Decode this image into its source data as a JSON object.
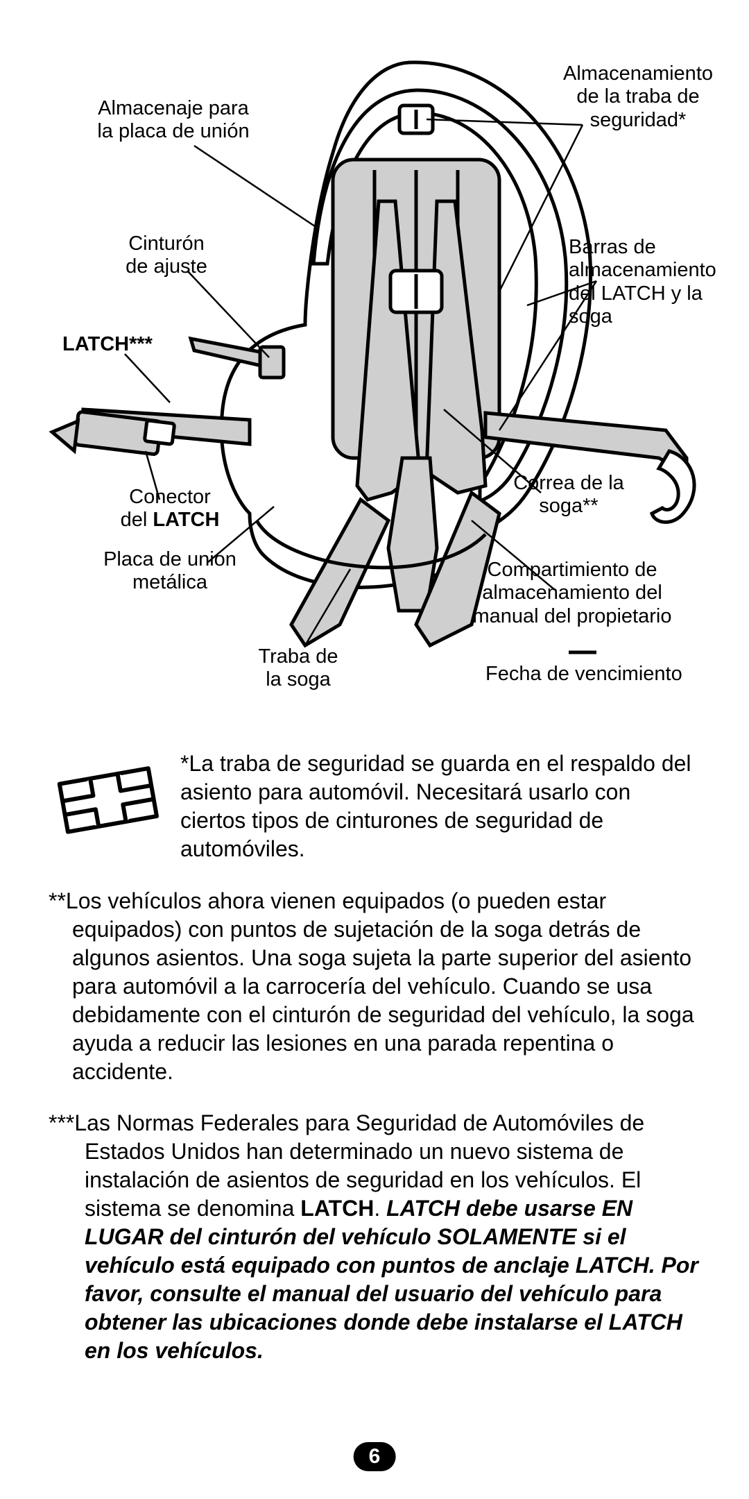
{
  "page_number": "6",
  "labels": {
    "almacenaje_placa": "Almacenaje para\nla placa de unión",
    "alm_traba_seg": "Almacenamiento\nde la traba de\nseguridad*",
    "cinturon_ajuste": "Cinturón\nde ajuste",
    "barras_latch": "Barras de\nalmacenamiento\ndel LATCH y la\nsoga",
    "latch": "LATCH***",
    "conector_latch_a": "Conector",
    "conector_latch_b": "del ",
    "conector_latch_c": "LATCH",
    "correa_soga": "Correa de la\nsoga**",
    "placa_union": "Placa de unión\nmetálica",
    "traba_soga": "Traba de\nla soga",
    "compartimiento": "Compartimiento de\nalmacenamiento del\nmanual del propietario",
    "fecha": "Fecha de vencimiento"
  },
  "notes": {
    "n1": "*La traba de seguridad se guarda en el respaldo del asiento para automóvil. Necesitará usarlo con ciertos tipos de cinturones de seguridad de automóviles.",
    "n2": "**Los vehículos ahora vienen equipados (o pueden estar equipados) con puntos de sujetación de la soga detrás de algunos asientos. Una soga sujeta la parte superior del asiento para automóvil a la carrocería del vehículo. Cuando se usa debidamente con el cinturón de seguridad del vehículo, la soga ayuda a reducir las lesiones en una parada repentina o accidente.",
    "n3_a": "***Las Normas Federales para Seguridad de Automóviles de Estados Unidos han determinado un nuevo sistema de instalación de asientos de seguridad en los vehículos. El sistema se denomina ",
    "n3_b": "LATCH",
    "n3_c": ". ",
    "n3_d": "LATCH debe usarse EN LUGAR del cinturón del vehículo SOLAMENTE si el vehículo está equipado con puntos de anclaje LATCH. Por favor, consulte el manual del usuario del vehículo para obtener las ubicaciones donde debe instalarse el LATCH en los vehículos."
  },
  "colors": {
    "fill_seat": "#cfcfcf",
    "fill_strap": "#cfcfcf",
    "stroke": "#000000",
    "bg": "#ffffff"
  }
}
